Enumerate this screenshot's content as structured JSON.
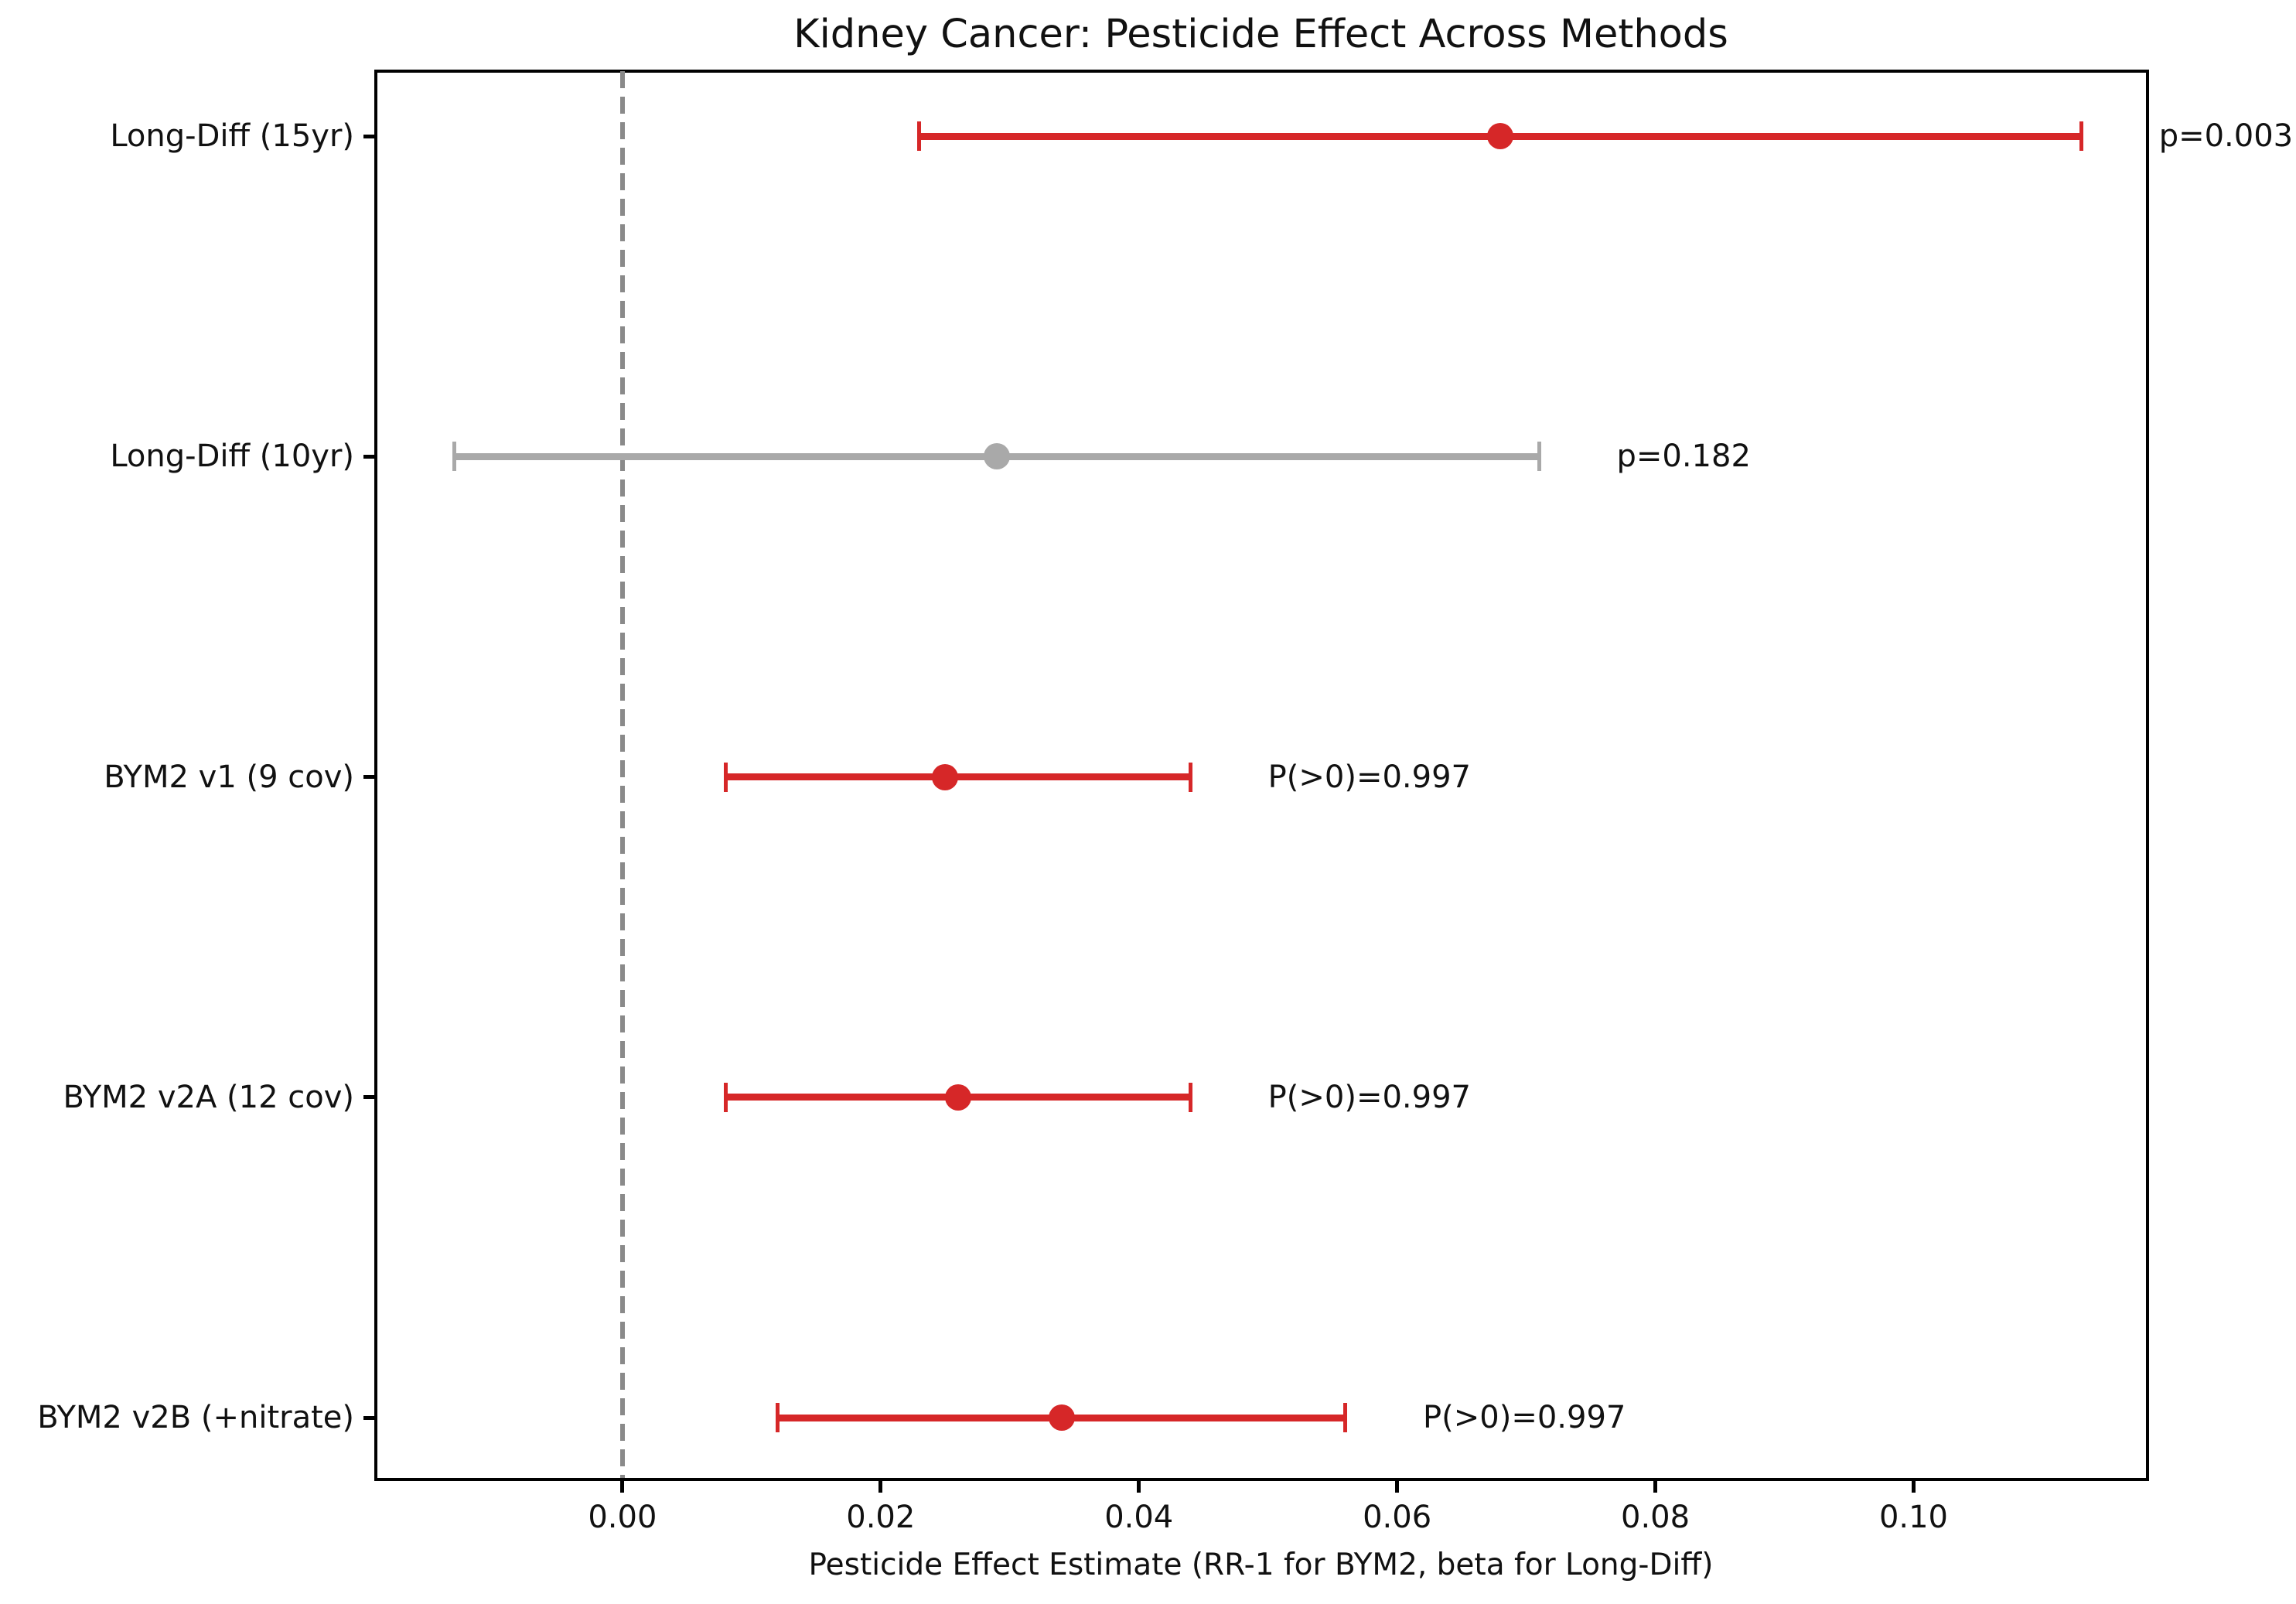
{
  "figure": {
    "title": "Kidney Cancer: Pesticide Effect Across Methods",
    "xlabel": "Pesticide Effect Estimate (RR-1 for BYM2, beta for Long-Diff)"
  },
  "chart_data": {
    "type": "scatter",
    "subtype": "forest-plot-horizontal-errorbars",
    "title": "Kidney Cancer: Pesticide Effect Across Methods",
    "xlabel": "Pesticide Effect Estimate (RR-1 for BYM2, beta for Long-Diff)",
    "ylabel": "",
    "xlim": [
      -0.0191,
      0.118
    ],
    "xtick_values": [
      0.0,
      0.02,
      0.04,
      0.06,
      0.08,
      0.1
    ],
    "xtick_labels": [
      "0.00",
      "0.02",
      "0.04",
      "0.06",
      "0.08",
      "0.10"
    ],
    "grid": false,
    "legend": "none",
    "zero_reference_line": {
      "x": 0.0,
      "style": "dashed",
      "color": "#8a8a8a"
    },
    "colors": {
      "significant": "#d62728",
      "nonsignificant": "#a9a9a9"
    },
    "annotation_x_offset": 0.006,
    "rows": [
      {
        "label": "Long-Diff (15yr)",
        "estimate": 0.068,
        "ci_low": 0.023,
        "ci_high": 0.113,
        "color_key": "significant",
        "annotation": "p=0.003"
      },
      {
        "label": "Long-Diff (10yr)",
        "estimate": 0.029,
        "ci_low": -0.013,
        "ci_high": 0.071,
        "color_key": "nonsignificant",
        "annotation": "p=0.182"
      },
      {
        "label": "BYM2 v1 (9 cov)",
        "estimate": 0.025,
        "ci_low": 0.008,
        "ci_high": 0.044,
        "color_key": "significant",
        "annotation": "P(>0)=0.997"
      },
      {
        "label": "BYM2 v2A (12 cov)",
        "estimate": 0.026,
        "ci_low": 0.008,
        "ci_high": 0.044,
        "color_key": "significant",
        "annotation": "P(>0)=0.997"
      },
      {
        "label": "BYM2 v2B (+nitrate)",
        "estimate": 0.034,
        "ci_low": 0.012,
        "ci_high": 0.056,
        "color_key": "significant",
        "annotation": "P(>0)=0.997"
      }
    ]
  }
}
